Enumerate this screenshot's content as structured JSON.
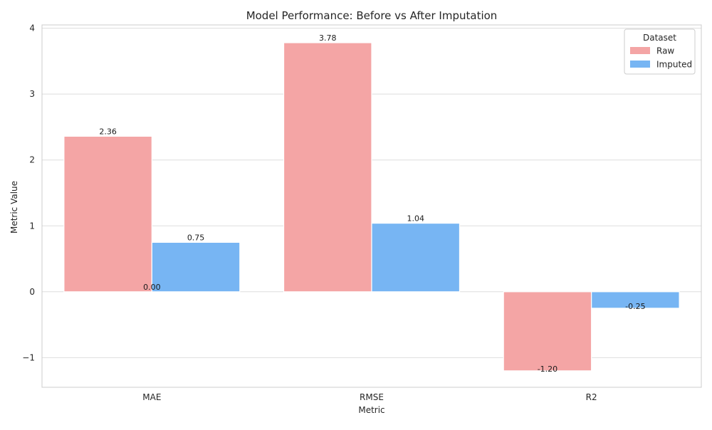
{
  "chart_data": {
    "type": "bar",
    "title": "Model Performance: Before vs After Imputation",
    "xlabel": "Metric",
    "ylabel": "Metric Value",
    "categories": [
      "MAE",
      "RMSE",
      "R2"
    ],
    "series": [
      {
        "name": "Raw",
        "values": [
          2.36,
          3.78,
          -1.2
        ],
        "color": "#f4a5a5",
        "labels": [
          "2.36",
          "3.78",
          "-1.20"
        ]
      },
      {
        "name": "Imputed",
        "values": [
          0.75,
          1.04,
          -0.25
        ],
        "color": "#77b5f3",
        "labels": [
          "0.75",
          "1.04",
          "-0.25"
        ]
      }
    ],
    "extra_annotations": [
      {
        "text": "0.00",
        "category": "MAE",
        "at_value": 0
      }
    ],
    "ylim": [
      -1.45,
      4.05
    ],
    "yticks": [
      -1,
      0,
      1,
      2,
      3,
      4
    ],
    "ytick_labels": [
      "−1",
      "0",
      "1",
      "2",
      "3",
      "4"
    ],
    "grid": "horizontal",
    "legend": {
      "title": "Dataset",
      "placement": "top-right"
    }
  }
}
